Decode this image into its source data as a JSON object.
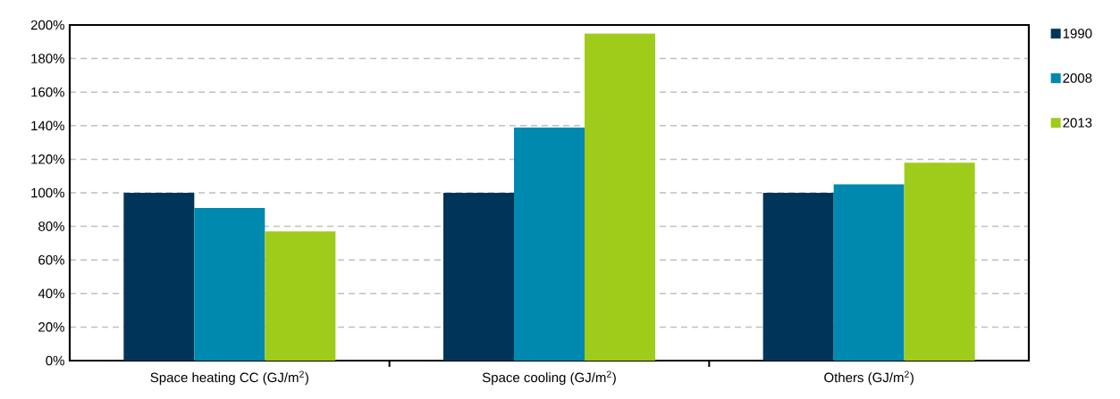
{
  "chart_data": {
    "type": "bar",
    "categories": [
      "Space heating CC (GJ/m$^{2}$)",
      "Space cooling (GJ/m$^{2}$)",
      "Others (GJ/m$^{2}$)"
    ],
    "series": [
      {
        "name": "1990",
        "color": "#00355a",
        "values": [
          100,
          100,
          100
        ]
      },
      {
        "name": "2008",
        "color": "#0089ae",
        "values": [
          91,
          139,
          105
        ]
      },
      {
        "name": "2013",
        "color": "#9fcc1a",
        "values": [
          77,
          195,
          118
        ]
      }
    ],
    "ylim": [
      0,
      200
    ],
    "yticks": [
      {
        "value": 0,
        "label": "0%"
      },
      {
        "value": 20,
        "label": "20%"
      },
      {
        "value": 40,
        "label": "40%"
      },
      {
        "value": 60,
        "label": "60%"
      },
      {
        "value": 80,
        "label": "80%"
      },
      {
        "value": 100,
        "label": "100%"
      },
      {
        "value": 120,
        "label": "120%"
      },
      {
        "value": 140,
        "label": "140%"
      },
      {
        "value": 160,
        "label": "160%"
      },
      {
        "value": 180,
        "label": "180%"
      },
      {
        "value": 200,
        "label": "200%"
      }
    ],
    "grid": "y",
    "legend": "top right"
  }
}
